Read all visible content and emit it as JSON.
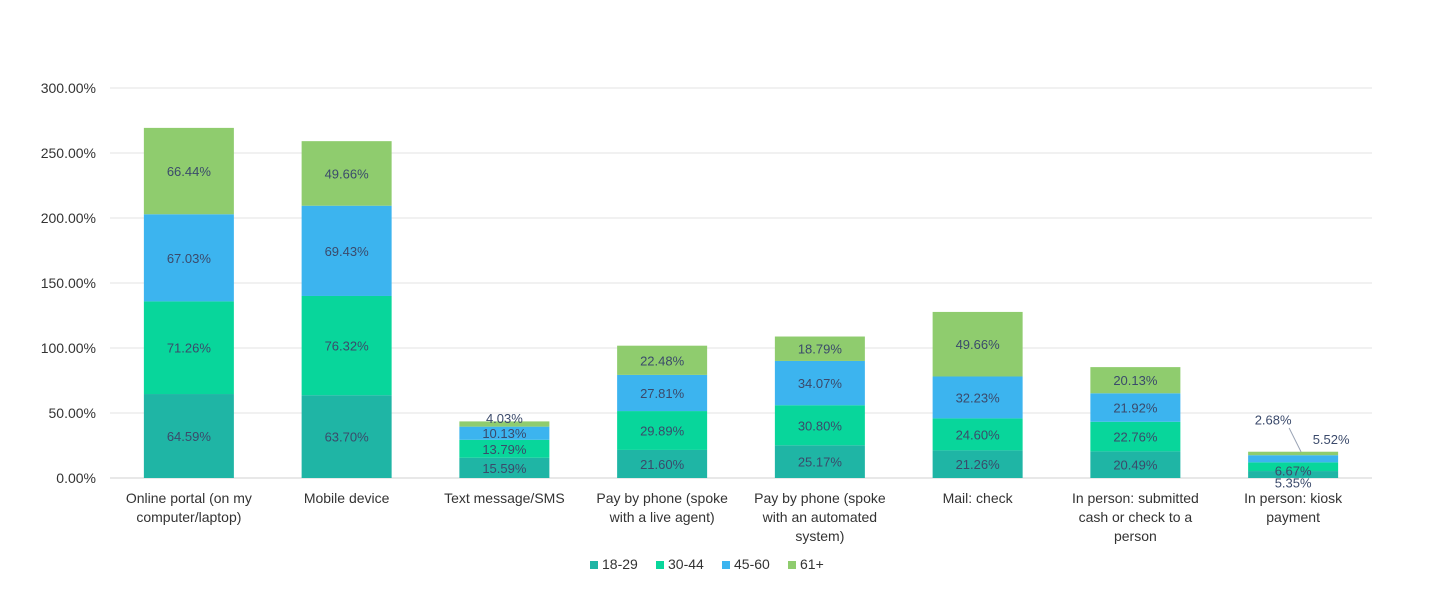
{
  "chart_data": {
    "type": "bar",
    "stacked": true,
    "title": "",
    "xlabel": "",
    "ylabel": "",
    "ylim": [
      0,
      300
    ],
    "yticks": [
      "0.00%",
      "50.00%",
      "100.00%",
      "150.00%",
      "200.00%",
      "250.00%",
      "300.00%"
    ],
    "grid": true,
    "legend_position": "bottom",
    "categories": [
      [
        "Online portal (on my",
        "computer/laptop)"
      ],
      [
        "Mobile device"
      ],
      [
        "Text message/SMS"
      ],
      [
        "Pay by phone (spoke",
        "with a live agent)"
      ],
      [
        "Pay by phone (spoke",
        "with an automated",
        "system)"
      ],
      [
        "Mail: check"
      ],
      [
        "In person: submitted",
        "cash or check to a",
        "person"
      ],
      [
        "In person: kiosk",
        "payment"
      ]
    ],
    "series": [
      {
        "name": "18-29",
        "color": "#1fb5a5",
        "values": [
          64.59,
          63.7,
          15.59,
          21.6,
          25.17,
          21.26,
          20.49,
          5.35
        ],
        "labels": [
          "64.59%",
          "63.70%",
          "15.59%",
          "21.60%",
          "25.17%",
          "21.26%",
          "20.49%",
          "5.35%"
        ]
      },
      {
        "name": "30-44",
        "color": "#08d69b",
        "values": [
          71.26,
          76.32,
          13.79,
          29.89,
          30.8,
          24.6,
          22.76,
          6.67
        ],
        "labels": [
          "71.26%",
          "76.32%",
          "13.79%",
          "29.89%",
          "30.80%",
          "24.60%",
          "22.76%",
          "6.67%"
        ]
      },
      {
        "name": "45-60",
        "color": "#3cb4ef",
        "values": [
          67.03,
          69.43,
          10.13,
          27.81,
          34.07,
          32.23,
          21.92,
          5.52
        ],
        "labels": [
          "67.03%",
          "69.43%",
          "10.13%",
          "27.81%",
          "34.07%",
          "32.23%",
          "21.92%",
          "5.52%"
        ]
      },
      {
        "name": "61+",
        "color": "#8fcc6e",
        "values": [
          66.44,
          49.66,
          4.03,
          22.48,
          18.79,
          49.66,
          20.13,
          2.68
        ],
        "labels": [
          "66.44%",
          "49.66%",
          "4.03%",
          "22.48%",
          "18.79%",
          "49.66%",
          "20.13%",
          "2.68%"
        ]
      }
    ]
  }
}
